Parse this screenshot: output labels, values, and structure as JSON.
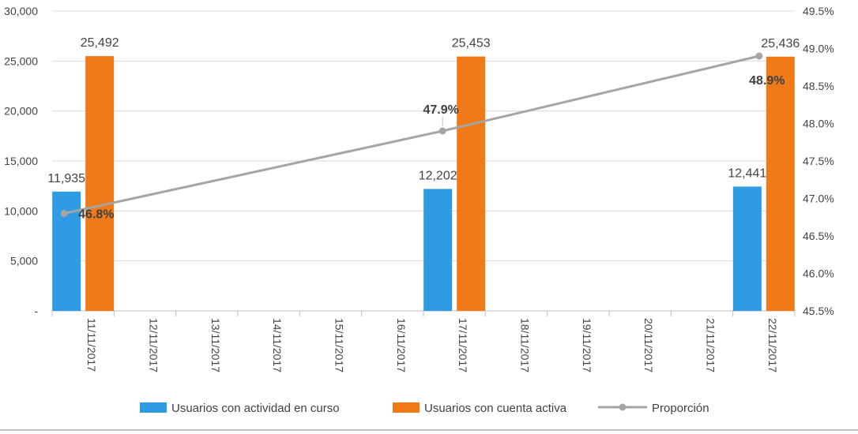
{
  "chart_data": {
    "type": "bar",
    "categories": [
      "11/11/2017",
      "12/11/2017",
      "13/11/2017",
      "14/11/2017",
      "15/11/2017",
      "16/11/2017",
      "17/11/2017",
      "18/11/2017",
      "19/11/2017",
      "20/11/2017",
      "21/11/2017",
      "22/11/2017"
    ],
    "series": [
      {
        "name": "Usuarios con actividad en curso",
        "type": "bar",
        "axis": "left",
        "color": "#2E9BE2",
        "values": [
          11935,
          null,
          null,
          null,
          null,
          null,
          12202,
          null,
          null,
          null,
          null,
          12441
        ],
        "labels": [
          "11,935",
          "",
          "",
          "",
          "",
          "",
          "12,202",
          "",
          "",
          "",
          "",
          "12,441"
        ]
      },
      {
        "name": "Usuarios con cuenta activa",
        "type": "bar",
        "axis": "left",
        "color": "#F07A1A",
        "values": [
          25492,
          null,
          null,
          null,
          null,
          null,
          25453,
          null,
          null,
          null,
          null,
          25436
        ],
        "labels": [
          "25,492",
          "",
          "",
          "",
          "",
          "",
          "25,453",
          "",
          "",
          "",
          "",
          "25,436"
        ]
      },
      {
        "name": "Proporción",
        "type": "line",
        "axis": "right",
        "color": "#A5A5A5",
        "values": [
          0.468,
          null,
          null,
          null,
          null,
          null,
          0.479,
          null,
          null,
          null,
          null,
          0.489
        ],
        "labels": [
          "46.8%",
          "",
          "",
          "",
          "",
          "",
          "47.9%",
          "",
          "",
          "",
          "",
          "48.9%"
        ]
      }
    ],
    "y_left": {
      "ylim": [
        0,
        30000
      ],
      "ticks": [
        0,
        5000,
        10000,
        15000,
        20000,
        25000,
        30000
      ],
      "tick_labels": [
        "-",
        "5,000",
        "10,000",
        "15,000",
        "20,000",
        "25,000",
        "30,000"
      ]
    },
    "y_right": {
      "ylim": [
        0.455,
        0.495
      ],
      "ticks": [
        0.455,
        0.46,
        0.465,
        0.47,
        0.475,
        0.48,
        0.485,
        0.49,
        0.495
      ],
      "tick_labels": [
        "45.5%",
        "46.0%",
        "46.5%",
        "47.0%",
        "47.5%",
        "48.0%",
        "48.5%",
        "49.0%",
        "49.5%"
      ]
    },
    "xlabel": "",
    "ylabel": "",
    "title": "",
    "grid": true,
    "legend_position": "bottom"
  }
}
